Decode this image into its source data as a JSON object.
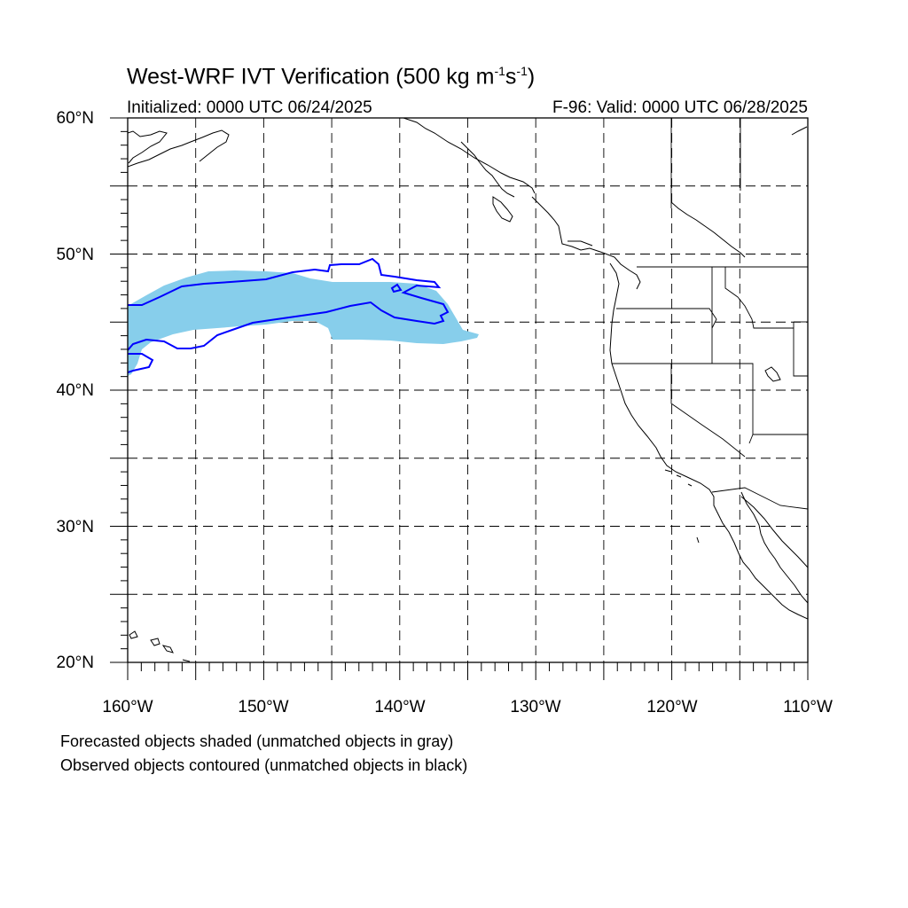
{
  "title": {
    "main": "West-WRF IVT Verification (500 kg m",
    "exp1": "-1",
    "mid": "s",
    "exp2": "-1",
    "close": ")"
  },
  "init_label": "Initialized: 0000 UTC 06/24/2025",
  "valid_label": "F-96: Valid: 0000 UTC 06/28/2025",
  "lat_labels": [
    "60°N",
    "50°N",
    "40°N",
    "30°N",
    "20°N"
  ],
  "lon_labels": [
    "160°W",
    "150°W",
    "140°W",
    "130°W",
    "120°W",
    "110°W"
  ],
  "notes": [
    "Forecasted objects shaded (unmatched objects in gray)",
    "Observed objects contoured (unmatched objects in black)"
  ],
  "colors": {
    "forecast_fill": "#87ceeb",
    "observed_contour": "#0000ff",
    "coastline": "#000000",
    "grid": "#000000"
  },
  "map": {
    "lon_range": [
      -160,
      -110
    ],
    "lat_range": [
      20,
      60
    ],
    "grid": "dashed",
    "grid_step_deg": 5
  }
}
